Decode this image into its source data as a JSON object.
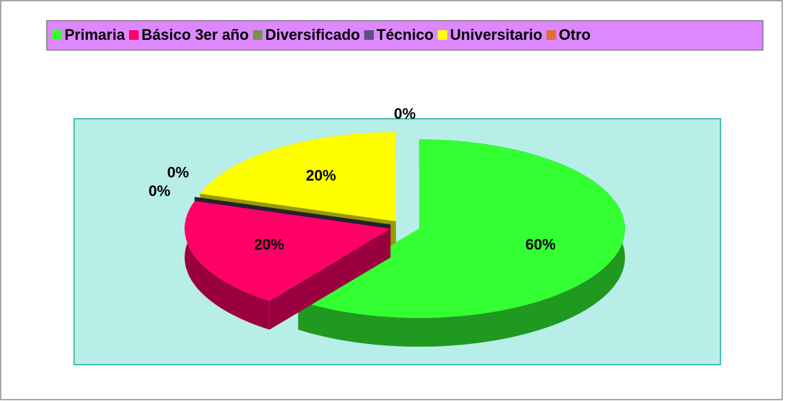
{
  "chart_data": {
    "type": "pie",
    "categories": [
      "Primaria",
      "Básico 3er año",
      "Diversificado",
      "Técnico",
      "Universitario",
      "Otro"
    ],
    "values": [
      60,
      20,
      0,
      0,
      20,
      0
    ],
    "value_labels": [
      "60%",
      "20%",
      "0%",
      "0%",
      "20%",
      "0%"
    ],
    "colors": [
      "#33ff33",
      "#ff0066",
      "#7f8f4f",
      "#5f4f7f",
      "#ffff00",
      "#e07030"
    ],
    "legend": "top"
  }
}
